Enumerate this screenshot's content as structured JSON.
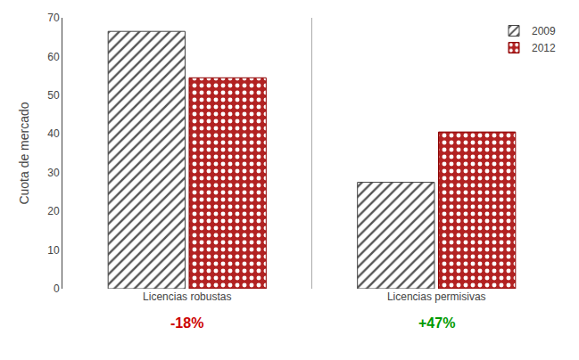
{
  "chart_data": {
    "type": "bar",
    "categories": [
      "Licencias robustas",
      "Licencias permisivas"
    ],
    "series": [
      {
        "name": "2009",
        "color": "white",
        "values": [
          66.5,
          27.5
        ]
      },
      {
        "name": "2012",
        "color": "#b22222",
        "values": [
          54.5,
          40.5
        ]
      }
    ],
    "ylabel": "Cuota de mercado",
    "ylim": [
      0,
      70
    ],
    "yticks": [
      0,
      10,
      20,
      30,
      40,
      50,
      60,
      70
    ],
    "annotations": [
      {
        "text": "-18%",
        "color": "#cc0000",
        "category": "Licencias robustas"
      },
      {
        "text": "+47%",
        "color": "#009900",
        "category": "Licencias permisivas"
      }
    ],
    "legend": "upper right",
    "grid": false
  }
}
